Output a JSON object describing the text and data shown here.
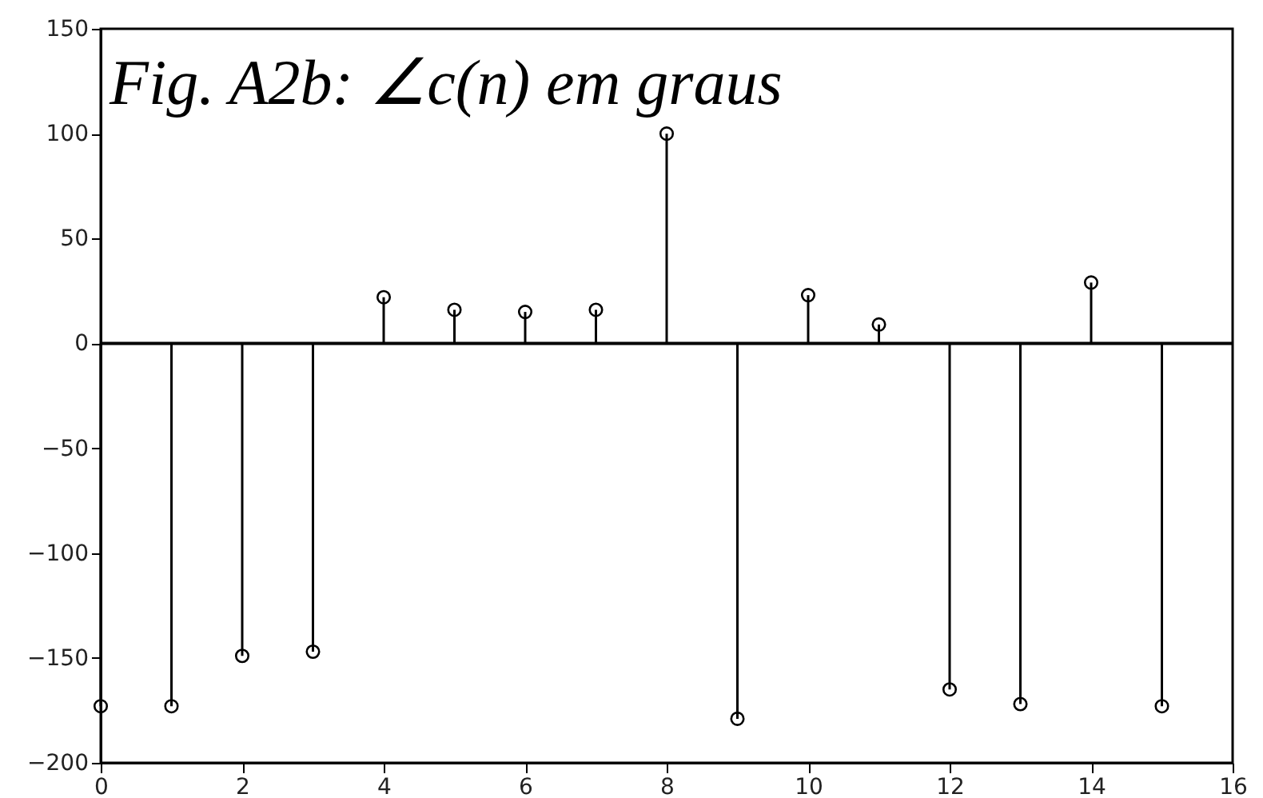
{
  "chart_data": {
    "type": "lollipop",
    "title": "Fig. A2b: ∠c(n)  em graus",
    "x": [
      0,
      1,
      2,
      3,
      4,
      5,
      6,
      7,
      8,
      9,
      10,
      11,
      12,
      13,
      14,
      15
    ],
    "values": [
      -173,
      -173,
      -149,
      -147,
      22,
      16,
      15,
      16,
      100,
      -179,
      23,
      9,
      -165,
      -172,
      29,
      -173
    ],
    "color": "#000000",
    "marker": "circle",
    "xlim": [
      0,
      16
    ],
    "xticks": [
      0,
      2,
      4,
      6,
      8,
      10,
      12,
      14,
      16
    ],
    "ylim": [
      -200,
      150
    ],
    "yticks": [
      -200,
      -150,
      -100,
      -50,
      0,
      50,
      100,
      150
    ],
    "ref_lines": [
      {
        "axis": "y",
        "value": 0
      }
    ],
    "grid": false
  }
}
